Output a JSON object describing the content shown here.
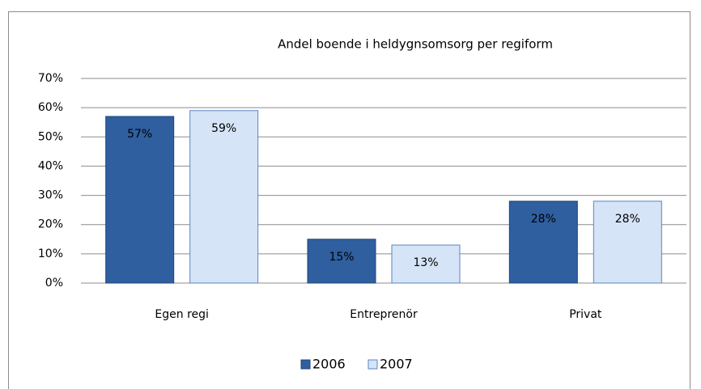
{
  "chart_data": {
    "type": "bar",
    "title": "Andel boende i  heldygnsomsorg per regiform",
    "categories": [
      "Egen regi",
      "Entreprenör",
      "Privat"
    ],
    "series": [
      {
        "name": "2006",
        "color": "#2f5f9f",
        "values": [
          57,
          15,
          28
        ],
        "value_labels": [
          "57%",
          "15%",
          "28%"
        ]
      },
      {
        "name": "2007",
        "color": "#d5e4f7",
        "values": [
          59,
          13,
          28
        ],
        "value_labels": [
          "59%",
          "13%",
          "28%"
        ]
      }
    ],
    "ylim": [
      0,
      70
    ],
    "yticks": [
      {
        "value": 0,
        "label": "0%"
      },
      {
        "value": 10,
        "label": "10%"
      },
      {
        "value": 20,
        "label": "20%"
      },
      {
        "value": 30,
        "label": "30%"
      },
      {
        "value": 40,
        "label": "40%"
      },
      {
        "value": 50,
        "label": "50%"
      },
      {
        "value": 60,
        "label": "60%"
      },
      {
        "value": 70,
        "label": "70%"
      }
    ],
    "grid": true,
    "legend": "bottom"
  }
}
